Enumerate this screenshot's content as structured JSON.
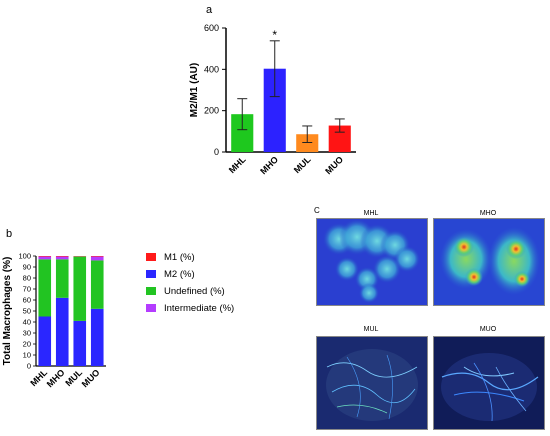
{
  "panels": {
    "a": "a",
    "b": "b",
    "c": "C"
  },
  "chart_data": [
    {
      "type": "bar",
      "categories": [
        "MHL",
        "MHO",
        "MUL",
        "MUO"
      ],
      "values": [
        183,
        403,
        86,
        128
      ],
      "errors": [
        75,
        135,
        40,
        32
      ],
      "colors": [
        "#1ec81e",
        "#2c22ff",
        "#ff8a1e",
        "#ff1414"
      ],
      "ylabel": "M2/M1 (AU)",
      "ylim": [
        0,
        600
      ],
      "yticks": [
        "0",
        "200",
        "400",
        "600"
      ],
      "annotation": {
        "text": "*",
        "category": "MHO"
      },
      "grid": false
    },
    {
      "type": "bar",
      "stacked": true,
      "categories": [
        "MHL",
        "MHO",
        "MUL",
        "MUO"
      ],
      "ylabel": "Total Macrophages (%)",
      "ylim": [
        0,
        100
      ],
      "yticks": [
        "0",
        "10",
        "20",
        "30",
        "40",
        "50",
        "60",
        "70",
        "80",
        "90",
        "100"
      ],
      "series": [
        {
          "name": "M1 (%)",
          "color": "#ff1a1a",
          "values": [
            0.5,
            0.5,
            0.3,
            0.5
          ]
        },
        {
          "name": "M2 (%)",
          "color": "#2a26ff",
          "values": [
            45,
            62,
            41,
            52
          ]
        },
        {
          "name": "Undefined (%)",
          "color": "#22c422",
          "values": [
            52,
            35,
            58.5,
            44
          ]
        },
        {
          "name": "Intermediate (%)",
          "color": "#b43cff",
          "values": [
            2.5,
            2.5,
            0.2,
            3.5
          ]
        }
      ],
      "legend": "right",
      "grid": false
    }
  ],
  "images": [
    {
      "title": "MHL",
      "style": "cool-heatmap"
    },
    {
      "title": "MHO",
      "style": "hot-heatmap"
    },
    {
      "title": "MUL",
      "style": "dark-filament"
    },
    {
      "title": "MUO",
      "style": "dark-filament-bright"
    }
  ]
}
